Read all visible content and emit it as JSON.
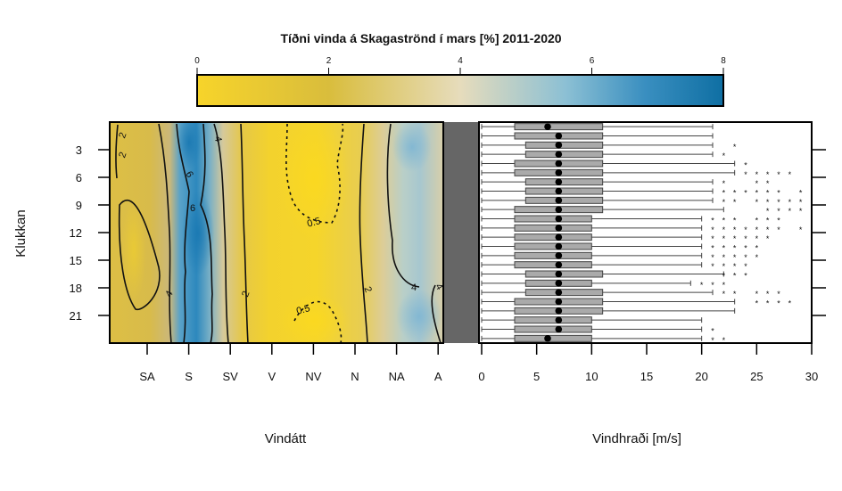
{
  "title": "Tíðni vinda á Skagaströnd í mars [%] 2011-2020",
  "colorbar": {
    "ticks": [
      "0",
      "2",
      "4",
      "6",
      "8"
    ],
    "range": [
      0,
      8
    ],
    "colors": [
      "#f7d42a",
      "#d9bd3c",
      "#e6dcbc",
      "#8cc0d4",
      "#3a8fc0",
      "#0f6fa3"
    ]
  },
  "chart_data": [
    {
      "type": "heatmap",
      "xlabel": "Vindátt",
      "ylabel": "Klukkan",
      "x_categories": [
        "SA",
        "S",
        "SV",
        "V",
        "NV",
        "N",
        "NA",
        "A"
      ],
      "y_ticks": [
        "3",
        "6",
        "9",
        "12",
        "15",
        "18",
        "21"
      ],
      "y_range": [
        0,
        24
      ],
      "contour_labels": [
        "2",
        "2",
        "4",
        "6",
        "6",
        "4",
        "2",
        "0.5",
        "0.5",
        "2",
        "4",
        "4"
      ],
      "calm_column_color": "#666666"
    },
    {
      "type": "box",
      "xlabel": "Vindhraði [m/s]",
      "x_ticks": [
        "0",
        "5",
        "10",
        "15",
        "20",
        "25",
        "30"
      ],
      "xlim": [
        0,
        30
      ],
      "hours": [
        1,
        2,
        3,
        4,
        5,
        6,
        7,
        8,
        9,
        10,
        11,
        12,
        13,
        14,
        15,
        16,
        17,
        18,
        19,
        20,
        21,
        22,
        23,
        24
      ],
      "median": [
        6,
        7,
        7,
        7,
        7,
        7,
        7,
        7,
        7,
        7,
        7,
        7,
        7,
        7,
        7,
        7,
        7,
        7,
        7,
        7,
        7,
        7,
        7,
        6
      ],
      "q1": [
        3,
        3,
        4,
        4,
        3,
        3,
        4,
        4,
        4,
        3,
        3,
        3,
        3,
        3,
        3,
        3,
        4,
        4,
        4,
        3,
        3,
        3,
        3,
        3
      ],
      "q3": [
        11,
        11,
        11,
        11,
        11,
        11,
        11,
        11,
        11,
        11,
        10,
        10,
        10,
        10,
        10,
        10,
        11,
        10,
        11,
        11,
        11,
        10,
        10,
        10
      ],
      "whisker_high": [
        21,
        21,
        21,
        21,
        23,
        23,
        21,
        21,
        21,
        22,
        20,
        20,
        20,
        20,
        20,
        20,
        22,
        19,
        21,
        23,
        23,
        20,
        20,
        20
      ],
      "outliers": [
        [],
        [],
        [
          23
        ],
        [
          22
        ],
        [
          24
        ],
        [
          24,
          25,
          26,
          27,
          28
        ],
        [
          22,
          25,
          26
        ],
        [
          22,
          23,
          24,
          25,
          26,
          27,
          29
        ],
        [
          22,
          23,
          25,
          26,
          27,
          28,
          29
        ],
        [
          26,
          27,
          28,
          29
        ],
        [
          21,
          22,
          23,
          25,
          26,
          27
        ],
        [
          21,
          22,
          23,
          24,
          25,
          26,
          27,
          29
        ],
        [
          21,
          22,
          23,
          24,
          25,
          26
        ],
        [
          21,
          22,
          23,
          24,
          25
        ],
        [
          21,
          22,
          23,
          24,
          25
        ],
        [
          21,
          22,
          23,
          24
        ],
        [
          22,
          23,
          24
        ],
        [
          20,
          21,
          22
        ],
        [
          22,
          23,
          25,
          26,
          27
        ],
        [
          25,
          26,
          27,
          28
        ],
        [],
        [],
        [
          21
        ],
        [
          21,
          22
        ]
      ]
    }
  ]
}
